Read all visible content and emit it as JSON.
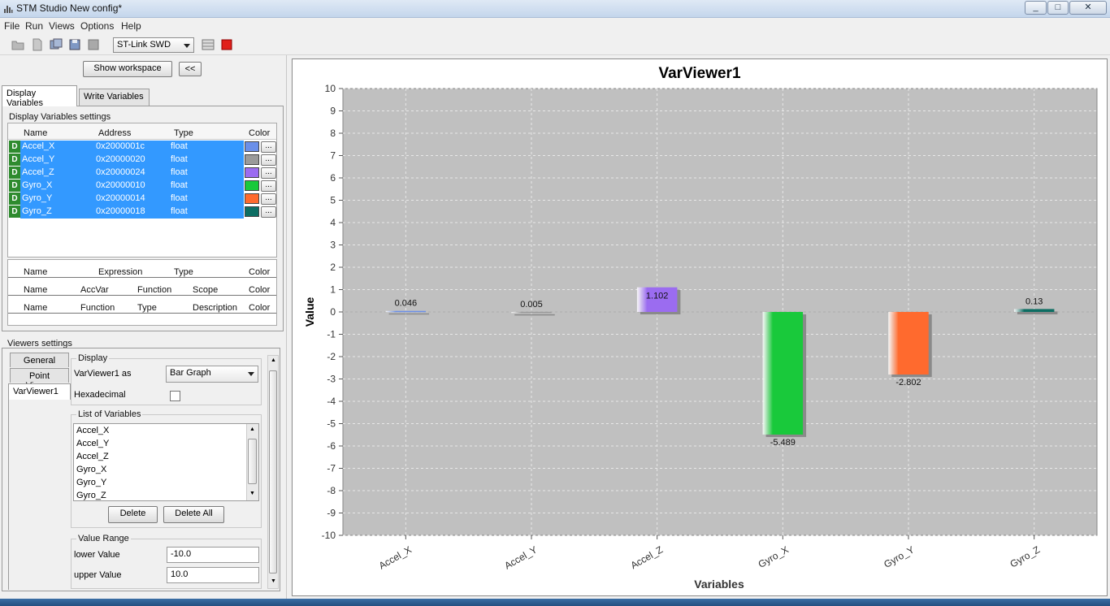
{
  "window": {
    "title": "STM Studio New config*",
    "buttons": [
      "minimize-icon",
      "maximize-icon",
      "close-icon"
    ]
  },
  "menu": [
    "File",
    "Run",
    "Views",
    "Options",
    "Help"
  ],
  "toolbar": {
    "icons": [
      "open-folder-icon",
      "new-file-icon",
      "save-all-icon",
      "save-icon",
      "export-icon"
    ],
    "debugger": "ST-Link SWD",
    "run_icons": [
      "grid-icon",
      "stop-icon"
    ]
  },
  "left": {
    "show_workspace": "Show workspace",
    "collapse": "<<",
    "tabs": [
      "Display Variables",
      "Write Variables"
    ],
    "settings_title": "Display Variables settings",
    "var_headers": [
      "Name",
      "Address",
      "Type",
      "Color"
    ],
    "variables": [
      {
        "badge": "D",
        "name": "Accel_X",
        "address": "0x2000001c",
        "type": "float",
        "color": "#6b8fe8"
      },
      {
        "badge": "D",
        "name": "Accel_Y",
        "address": "0x20000020",
        "type": "float",
        "color": "#9a9a9a"
      },
      {
        "badge": "D",
        "name": "Accel_Z",
        "address": "0x20000024",
        "type": "float",
        "color": "#9b6cf0"
      },
      {
        "badge": "D",
        "name": "Gyro_X",
        "address": "0x20000010",
        "type": "float",
        "color": "#19c93b"
      },
      {
        "badge": "D",
        "name": "Gyro_Y",
        "address": "0x20000014",
        "type": "float",
        "color": "#ff6a2e"
      },
      {
        "badge": "D",
        "name": "Gyro_Z",
        "address": "0x20000018",
        "type": "float",
        "color": "#0d6e63"
      }
    ],
    "dots": "...",
    "expr_headers": [
      "Name",
      "Expression",
      "Type",
      "Color"
    ],
    "accvar_headers": [
      "Name",
      "AccVar",
      "Function",
      "Scope",
      "Color"
    ],
    "func_headers": [
      "Name",
      "Function",
      "Type",
      "Description",
      "Color"
    ],
    "viewers_title": "Viewers settings",
    "viewer_tabs": [
      "General",
      "Point Viewer",
      "VarViewer1"
    ],
    "display_group": "Display",
    "viewer_as_label": "VarViewer1 as",
    "viewer_as_value": "Bar Graph",
    "hex_label": "Hexadecimal",
    "list_group": "List of Variables",
    "list_items": [
      "Accel_X",
      "Accel_Y",
      "Accel_Z",
      "Gyro_X",
      "Gyro_Y",
      "Gyro_Z"
    ],
    "delete": "Delete",
    "delete_all": "Delete All",
    "range_group": "Value Range",
    "lower_label": "lower Value",
    "lower_value": "-10.0",
    "upper_label": "upper Value",
    "upper_value": "10.0"
  },
  "chart_data": {
    "type": "bar",
    "title": "VarViewer1",
    "xlabel": "Variables",
    "ylabel": "Value",
    "ylim": [
      -10,
      10
    ],
    "yticks": [
      10,
      9,
      8,
      7,
      6,
      5,
      4,
      3,
      2,
      1,
      0,
      -1,
      -2,
      -3,
      -4,
      -5,
      -6,
      -7,
      -8,
      -9,
      -10
    ],
    "grid": true,
    "categories": [
      "Accel_X",
      "Accel_Y",
      "Accel_Z",
      "Gyro_X",
      "Gyro_Y",
      "Gyro_Z"
    ],
    "values": [
      0.046,
      0.005,
      1.102,
      -5.489,
      -2.802,
      0.13
    ],
    "labels": [
      "0.046",
      "0.005",
      "1.102",
      "-5.489",
      "-2.802",
      "0.13"
    ],
    "colors": [
      "#6b8fe8",
      "#9a9a9a",
      "#9b6cf0",
      "#19c93b",
      "#ff6a2e",
      "#0d6e63"
    ]
  }
}
